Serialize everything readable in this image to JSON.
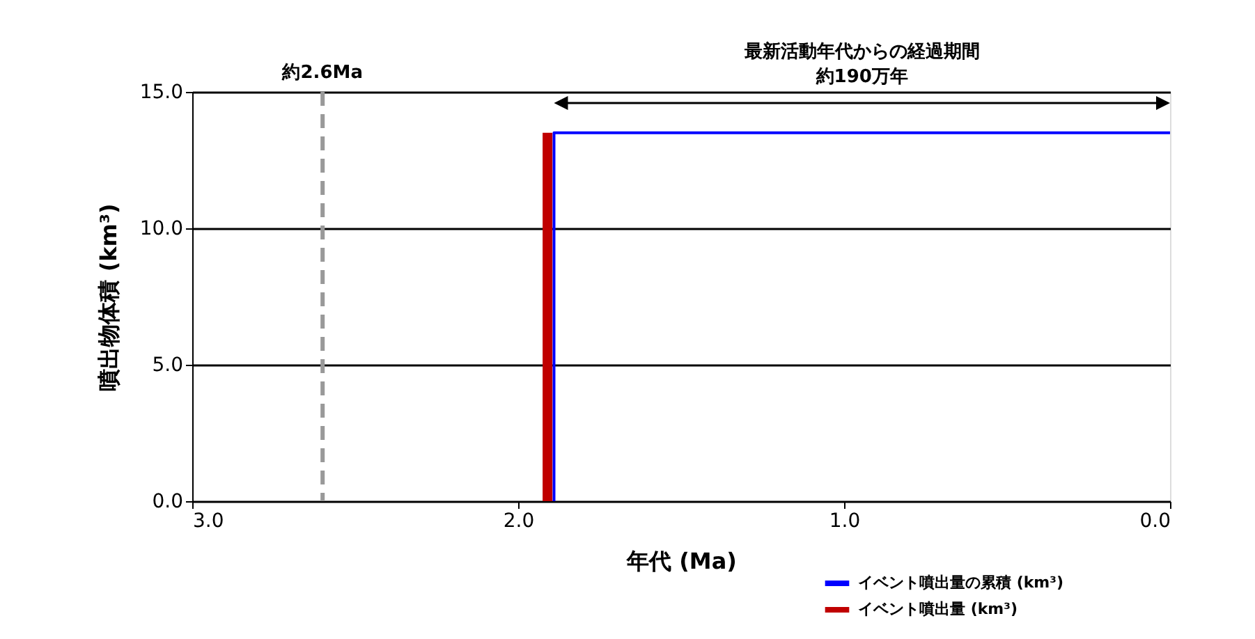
{
  "chart_data": {
    "type": "step",
    "xlabel": "年代 (Ma)",
    "ylabel": "噴出物体積 (km³)",
    "xlim": [
      3.0,
      0.0
    ],
    "xticks": [
      {
        "value": 3,
        "label": "3.0"
      },
      {
        "value": 2,
        "label": "2.0"
      },
      {
        "value": 1,
        "label": "1.0"
      },
      {
        "value": 0,
        "label": "0.0"
      }
    ],
    "ylim": [
      0,
      15
    ],
    "yticks": [
      {
        "value": 0,
        "label": "0.0"
      },
      {
        "value": 5,
        "label": "5.0"
      },
      {
        "value": 10,
        "label": "10.0"
      },
      {
        "value": 15,
        "label": "15.0"
      }
    ],
    "grid": "y",
    "legend": "bottom right",
    "series": [
      {
        "name": "イベント噴出量の累積 (km³)",
        "color": "#0000ff",
        "x": [
          1.89,
          0.0
        ],
        "values": [
          0,
          13.5
        ]
      },
      {
        "name": "イベント噴出量 (km³)",
        "type": "bar",
        "color": "#c00000",
        "x": [
          1.91
        ],
        "values": [
          13.5
        ]
      }
    ],
    "ref_lines": [
      {
        "axis": "x",
        "value": 2.6,
        "label": "約2.6Ma",
        "color": "#999999",
        "line_style": "dashed"
      }
    ],
    "annotations": [
      "最新活動年代からの経過期間",
      "約190万年"
    ]
  }
}
